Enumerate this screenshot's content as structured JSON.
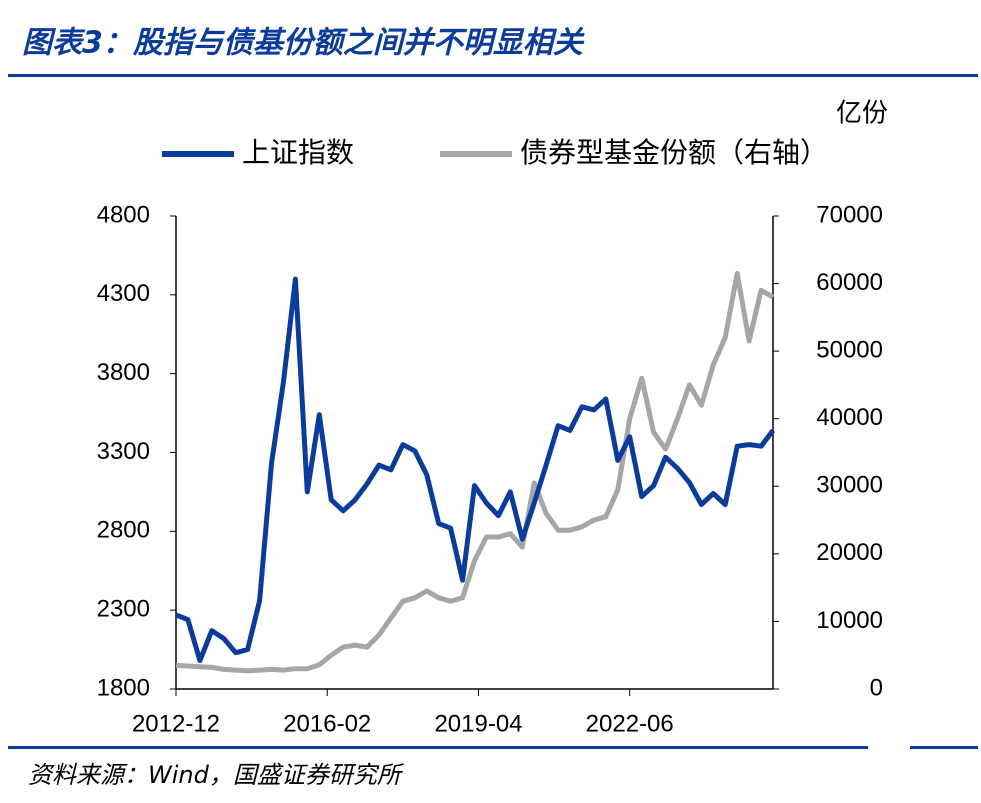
{
  "chart_data": {
    "type": "line",
    "title": "图表3：股指与债基份额之间并不明显相关",
    "source": "资料来源：Wind，国盛证券研究所",
    "y2_unit": "亿份",
    "x": [
      "2012-12",
      "2013-03",
      "2013-06",
      "2013-09",
      "2013-12",
      "2014-03",
      "2014-06",
      "2014-09",
      "2014-12",
      "2015-03",
      "2015-06",
      "2015-09",
      "2015-12",
      "2016-03",
      "2016-06",
      "2016-09",
      "2016-12",
      "2017-03",
      "2017-06",
      "2017-09",
      "2017-12",
      "2018-03",
      "2018-06",
      "2018-09",
      "2018-12",
      "2019-03",
      "2019-06",
      "2019-09",
      "2019-12",
      "2020-03",
      "2020-06",
      "2020-09",
      "2020-12",
      "2021-03",
      "2021-06",
      "2021-09",
      "2021-12",
      "2022-03",
      "2022-06",
      "2022-09",
      "2022-12",
      "2023-03",
      "2023-06",
      "2023-09",
      "2023-12",
      "2024-03",
      "2024-06",
      "2024-09",
      "2024-12",
      "2025-03",
      "2025-06"
    ],
    "xlim": [
      "2012-12",
      "2025-06"
    ],
    "xticks": [
      "2012-12",
      "2016-02",
      "2019-04",
      "2022-06"
    ],
    "ylim": [
      1800,
      4800
    ],
    "yticks": [
      1800,
      2300,
      2800,
      3300,
      3800,
      4300,
      4800
    ],
    "y2lim": [
      0,
      70000
    ],
    "y2ticks": [
      0,
      10000,
      20000,
      30000,
      40000,
      50000,
      60000,
      70000
    ],
    "legend": "top",
    "series": [
      {
        "name": "上证指数",
        "color": "#0b3c9b",
        "values": [
          2270,
          2240,
          1980,
          2170,
          2120,
          2030,
          2050,
          2360,
          3230,
          3750,
          4400,
          3050,
          3540,
          3000,
          2930,
          3000,
          3100,
          3220,
          3190,
          3350,
          3310,
          3160,
          2850,
          2820,
          2490,
          3090,
          2980,
          2900,
          3050,
          2750,
          2980,
          3220,
          3470,
          3440,
          3590,
          3570,
          3640,
          3250,
          3400,
          3020,
          3090,
          3270,
          3200,
          3110,
          2970,
          3040,
          2970,
          3340,
          3350,
          3340,
          3440
        ]
      },
      {
        "name": "债券型基金份额（右轴）",
        "color": "#a6a6a6",
        "axis": "y2",
        "values": [
          3500,
          3400,
          3300,
          3200,
          2900,
          2800,
          2700,
          2800,
          2900,
          2800,
          3000,
          3000,
          3600,
          5000,
          6200,
          6500,
          6200,
          8000,
          10500,
          13000,
          13500,
          14500,
          13500,
          13000,
          13500,
          19000,
          22500,
          22500,
          23000,
          21000,
          30500,
          26000,
          23500,
          23500,
          24000,
          25000,
          25500,
          29500,
          40000,
          46000,
          38000,
          35500,
          40000,
          45000,
          42000,
          48000,
          52000,
          61500,
          51500,
          59000,
          58000
        ]
      }
    ]
  }
}
